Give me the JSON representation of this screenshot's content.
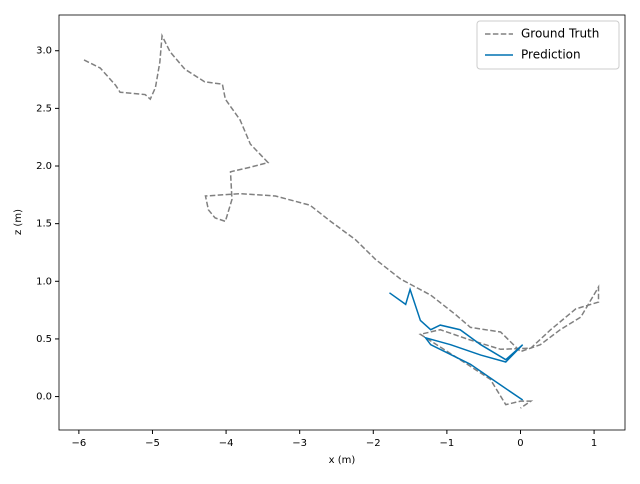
{
  "chart_data": {
    "type": "line",
    "xlabel": "x (m)",
    "ylabel": "z (m)",
    "xlim": [
      -6.27,
      1.42
    ],
    "ylim": [
      -0.29,
      3.31
    ],
    "xticks": [
      {
        "value": -6,
        "label": "−6"
      },
      {
        "value": -5,
        "label": "−5"
      },
      {
        "value": -4,
        "label": "−4"
      },
      {
        "value": -3,
        "label": "−3"
      },
      {
        "value": -2,
        "label": "−2"
      },
      {
        "value": -1,
        "label": "−1"
      },
      0,
      1
    ],
    "yticks": [
      {
        "value": 0,
        "label": "0.0"
      },
      {
        "value": 0.5,
        "label": "0.5"
      },
      {
        "value": 1,
        "label": "1.0"
      },
      {
        "value": 1.5,
        "label": "1.5"
      },
      {
        "value": 2,
        "label": "2.0"
      },
      {
        "value": 2.5,
        "label": "2.5"
      },
      {
        "value": 3,
        "label": "3.0"
      }
    ],
    "legend": "upper right",
    "series": [
      {
        "name": "Ground Truth",
        "color": "#808080",
        "dashed": true,
        "x": [
          -5.93,
          -5.71,
          -5.5,
          -5.44,
          -5.1,
          -5.03,
          -4.96,
          -4.9,
          -4.87,
          -4.76,
          -4.56,
          -4.29,
          -4.05,
          -4.01,
          -3.81,
          -3.67,
          -3.43,
          -3.67,
          -3.94,
          -3.92,
          -4.01,
          -4.15,
          -4.24,
          -4.28,
          -3.81,
          -3.33,
          -2.86,
          -2.58,
          -2.24,
          -1.97,
          -1.63,
          -1.22,
          -0.88,
          -0.68,
          -0.27,
          0,
          0.27,
          0.54,
          0.82,
          1.06,
          1.06,
          0.75,
          0.41,
          0.14,
          -0.27,
          -0.68,
          -1.09,
          -1.36,
          -0.82,
          -0.41,
          -0.2,
          0,
          0.14,
          0
        ],
        "values": [
          2.92,
          2.85,
          2.7,
          2.64,
          2.62,
          2.58,
          2.68,
          2.9,
          3.13,
          2.99,
          2.84,
          2.73,
          2.71,
          2.58,
          2.4,
          2.19,
          2.03,
          1.99,
          1.95,
          1.71,
          1.52,
          1.55,
          1.62,
          1.74,
          1.76,
          1.74,
          1.66,
          1.52,
          1.36,
          1.19,
          1.02,
          0.88,
          0.71,
          0.6,
          0.56,
          0.39,
          0.45,
          0.58,
          0.69,
          0.95,
          0.82,
          0.76,
          0.58,
          0.42,
          0.41,
          0.49,
          0.58,
          0.54,
          0.32,
          0.15,
          -0.07,
          -0.04,
          -0.04,
          -0.1
        ]
      },
      {
        "name": "Prediction",
        "color": "#0072b2",
        "dashed": false,
        "x": [
          -1.78,
          -1.56,
          -1.5,
          -1.36,
          -1.22,
          -1.09,
          -0.82,
          -0.54,
          -0.2,
          0.03,
          -0.2,
          -0.54,
          -0.95,
          -1.29,
          -1.22,
          -0.68,
          -0.27,
          0.03
        ],
        "values": [
          0.9,
          0.8,
          0.93,
          0.66,
          0.58,
          0.62,
          0.58,
          0.45,
          0.32,
          0.45,
          0.3,
          0.36,
          0.45,
          0.51,
          0.45,
          0.28,
          0.1,
          -0.03
        ]
      }
    ]
  }
}
